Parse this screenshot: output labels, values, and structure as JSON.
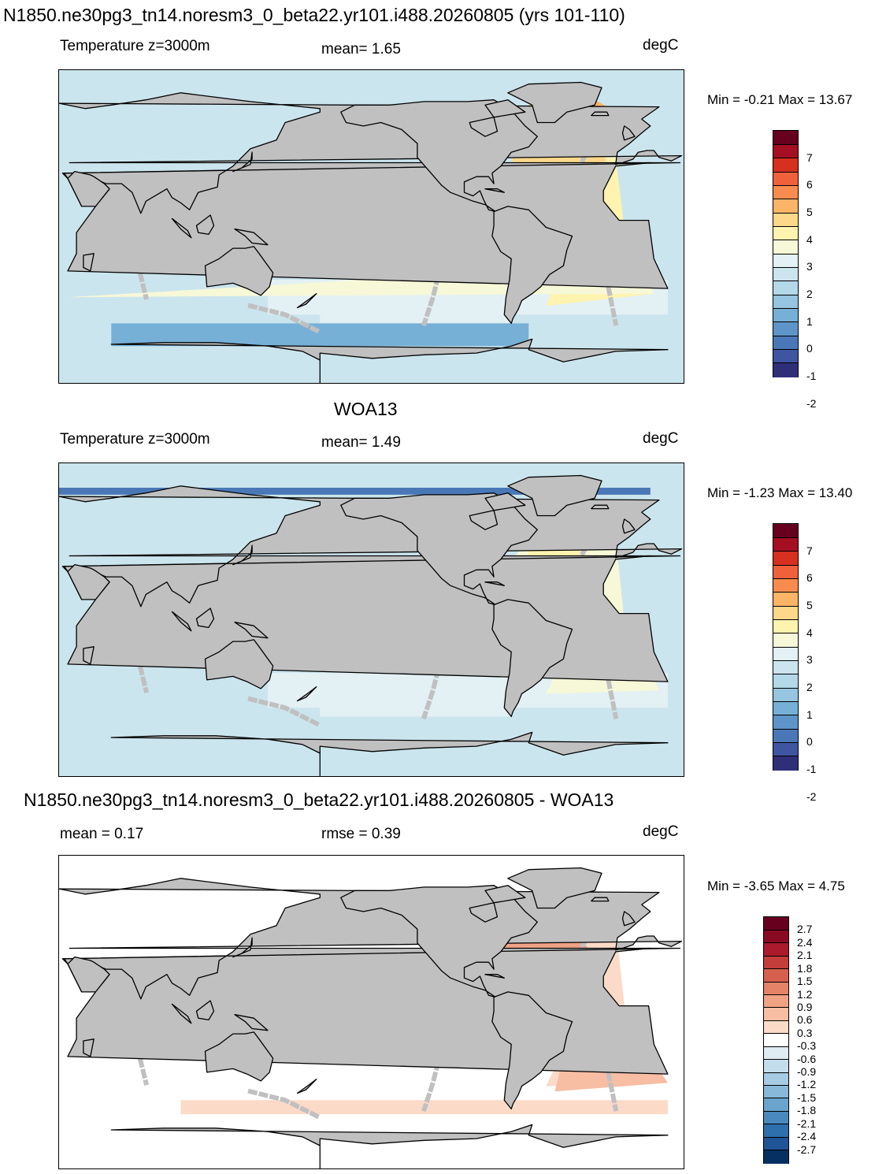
{
  "panels": [
    {
      "title": "N1850.ne30pg3_tn14.noresm3_0_beta22.yr101.i488.20260805 (yrs 101-110)",
      "left_label": "Temperature z=3000m",
      "center_label": "mean=   1.65",
      "unit": "degC",
      "minmax": "Min =  -0.21 Max =  13.67",
      "scheme": "model",
      "colorbar_labels": [
        "7",
        "6",
        "5",
        "4",
        "3",
        "2",
        "1",
        "0",
        "-1",
        "-2"
      ],
      "colorbar_colors": [
        "#67001f",
        "#a50f22",
        "#d6301f",
        "#f0603b",
        "#f88c4e",
        "#fcb467",
        "#fed88a",
        "#fff3b0",
        "#f6f8d8",
        "#e3f1f4",
        "#cbe5ee",
        "#b3d8e8",
        "#95c5e0",
        "#77b0d6",
        "#5d95c8",
        "#4a78b7",
        "#3e55a0",
        "#2f2f78"
      ]
    },
    {
      "title": "WOA13",
      "left_label": "Temperature z=3000m",
      "center_label": "mean=   1.49",
      "unit": "degC",
      "minmax": "Min =  -1.23 Max =  13.40",
      "scheme": "obs",
      "colorbar_labels": [
        "7",
        "6",
        "5",
        "4",
        "3",
        "2",
        "1",
        "0",
        "-1",
        "-2"
      ],
      "colorbar_colors": [
        "#67001f",
        "#a50f22",
        "#d6301f",
        "#f0603b",
        "#f88c4e",
        "#fcb467",
        "#fed88a",
        "#fff3b0",
        "#f6f8d8",
        "#e3f1f4",
        "#cbe5ee",
        "#b3d8e8",
        "#95c5e0",
        "#77b0d6",
        "#5d95c8",
        "#4a78b7",
        "#3e55a0",
        "#2f2f78"
      ]
    },
    {
      "title": "N1850.ne30pg3_tn14.noresm3_0_beta22.yr101.i488.20260805 - WOA13",
      "left_label": "mean =   0.17",
      "center_label": "rmse =   0.39",
      "unit": "degC",
      "minmax": "Min =  -3.65 Max =   4.75",
      "scheme": "diff",
      "colorbar_labels": [
        "2.7",
        "2.4",
        "2.1",
        "1.8",
        "1.5",
        "1.2",
        "0.9",
        "0.6",
        "0.3",
        "-0.3",
        "-0.6",
        "-0.9",
        "-1.2",
        "-1.5",
        "-1.8",
        "-2.1",
        "-2.4",
        "-2.7"
      ],
      "colorbar_colors": [
        "#67001f",
        "#8b0a23",
        "#ab1a2d",
        "#c43c3b",
        "#d6604d",
        "#e58368",
        "#f0a285",
        "#f7bea4",
        "#fbdac8",
        "#ffffff",
        "#deebf2",
        "#c4dded",
        "#a6cbe3",
        "#88b9d8",
        "#6aa3cc",
        "#4a89bd",
        "#2f6fae",
        "#1f5597",
        "#053061"
      ]
    }
  ],
  "colors": {
    "land": "#c0c0c0",
    "coast": "#000000",
    "model_base": "#cbe5ee",
    "obs_base": "#cbe5ee",
    "diff_base": "#ffffff"
  }
}
